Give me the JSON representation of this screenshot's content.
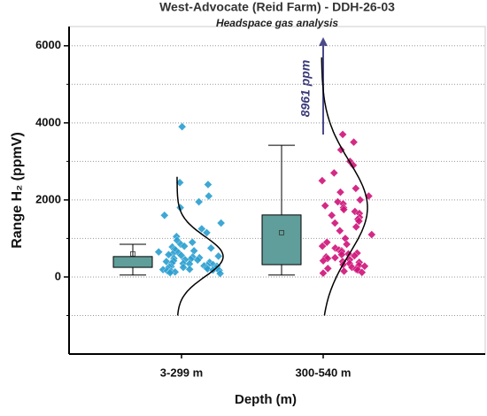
{
  "chart_data": {
    "type": "box",
    "title": "West-Advocate (Reid Farm) - DDH-26-03",
    "subtitle": "Headspace gas analysis",
    "y_label": "Range H₂ (ppmV)",
    "x_label": "Depth (m)",
    "categories": [
      "3-299 m",
      "300-540 m"
    ],
    "ylim": [
      -2000,
      6500
    ],
    "yticks": [
      0,
      2000,
      4000,
      6000
    ],
    "minor_yticks": [
      -1000,
      1000,
      3000,
      5000
    ],
    "grid": true,
    "box_color": "#5f9e9a",
    "colors": [
      "#2a9fd0",
      "#d0147a"
    ],
    "boxes": [
      {
        "whisker_low": 50,
        "q1": 250,
        "q3": 530,
        "whisker_high": 850,
        "mean": 600
      },
      {
        "whisker_low": 50,
        "q1": 320,
        "q3": 1610,
        "whisker_high": 3420,
        "mean": 1150
      }
    ],
    "points": [
      [
        3900,
        2450,
        2400,
        2100,
        1950,
        1800,
        1600,
        1400,
        1250,
        1150,
        1050,
        950,
        900,
        850,
        800,
        780,
        750,
        720,
        700,
        680,
        650,
        630,
        600,
        580,
        560,
        540,
        520,
        500,
        480,
        460,
        450,
        440,
        420,
        400,
        380,
        360,
        350,
        340,
        320,
        300,
        290,
        280,
        270,
        260,
        250,
        240,
        230,
        220,
        210,
        200,
        190,
        180,
        170,
        160,
        150,
        130,
        110,
        90
      ],
      [
        3700,
        3500,
        3300,
        3000,
        2900,
        2700,
        2500,
        2300,
        2200,
        2100,
        2000,
        1950,
        1900,
        1850,
        1800,
        1750,
        1700,
        1650,
        1600,
        1550,
        1500,
        1450,
        1400,
        1300,
        1200,
        1100,
        1000,
        900,
        850,
        800,
        750,
        700,
        680,
        650,
        620,
        600,
        580,
        550,
        520,
        500,
        480,
        450,
        420,
        400,
        380,
        350,
        320,
        300,
        280,
        250,
        220,
        200,
        180,
        150,
        120,
        100
      ]
    ],
    "curves": [
      {
        "mean": 530,
        "sd": 520,
        "from": -1000,
        "to": 2600
      },
      {
        "mean": 1800,
        "sd": 1200,
        "from": -1000,
        "to": 5700
      }
    ],
    "annotation": "8961 ppm"
  }
}
